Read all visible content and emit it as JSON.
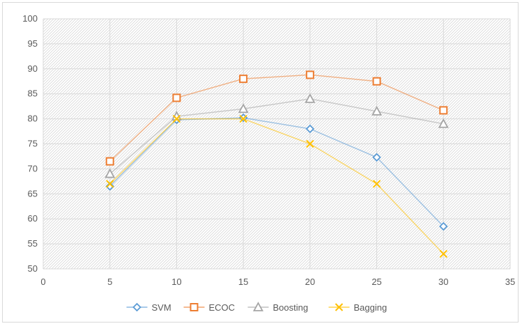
{
  "chart_data": {
    "type": "line",
    "title": "",
    "xlabel": "",
    "ylabel": "",
    "xlim": [
      0,
      35
    ],
    "ylim": [
      50,
      100
    ],
    "x_ticks": [
      0,
      5,
      10,
      15,
      20,
      25,
      30,
      35
    ],
    "y_ticks": [
      50,
      55,
      60,
      65,
      70,
      75,
      80,
      85,
      90,
      95,
      100
    ],
    "grid": true,
    "plot_background": "diagonal hatch",
    "legend_position": "bottom",
    "x": [
      5,
      10,
      15,
      20,
      25,
      30
    ],
    "series": [
      {
        "name": "SVM",
        "marker": "diamond",
        "color": "#5b9bd5",
        "values": [
          66.5,
          79.8,
          80.2,
          78.0,
          72.3,
          58.5
        ]
      },
      {
        "name": "ECOC",
        "marker": "square",
        "color": "#ed7d31",
        "values": [
          71.5,
          84.2,
          88.0,
          88.8,
          87.5,
          81.7
        ]
      },
      {
        "name": "Boosting",
        "marker": "triangle",
        "color": "#a5a5a5",
        "values": [
          69.0,
          80.5,
          82.0,
          84.0,
          81.5,
          79.0
        ]
      },
      {
        "name": "Bagging",
        "marker": "x",
        "color": "#ffc000",
        "values": [
          67.0,
          80.0,
          80.0,
          75.0,
          67.0,
          53.0
        ]
      }
    ]
  }
}
